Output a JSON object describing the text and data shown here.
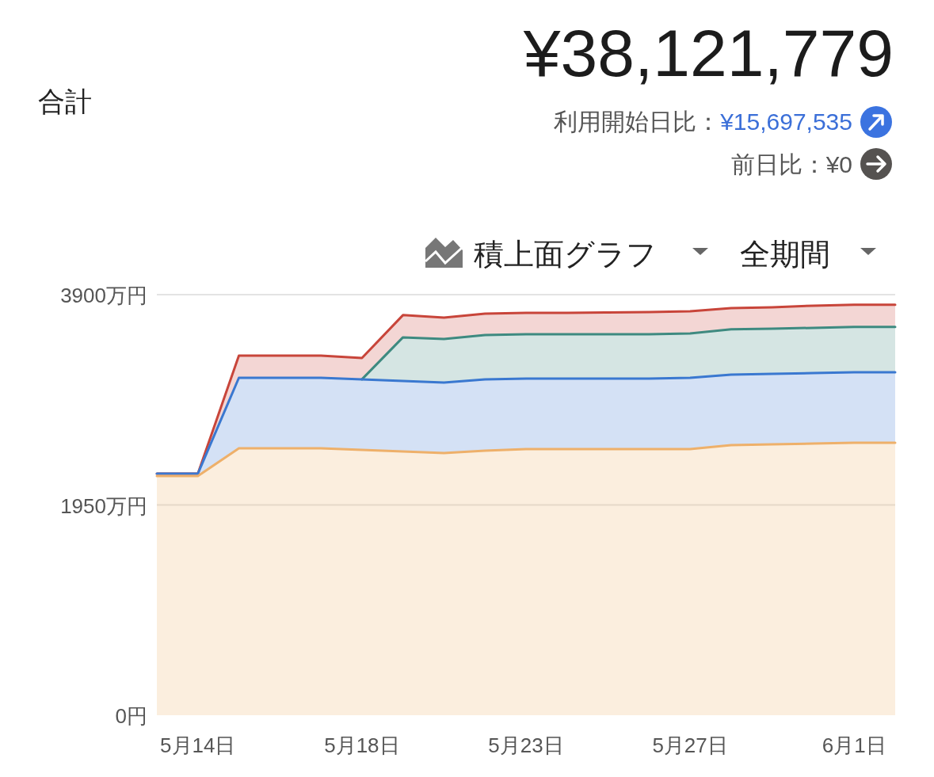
{
  "chart_data": {
    "type": "area",
    "stacked": true,
    "title": "合計",
    "subtitle": "¥38,121,779",
    "annotations": [
      "利用開始日比：¥15,697,535",
      "前日比：¥0",
      "積上面グラフ",
      "全期間"
    ],
    "categories": [
      null,
      "5月14日",
      null,
      null,
      null,
      "5月18日",
      null,
      null,
      null,
      "5月23日",
      null,
      null,
      null,
      "5月27日",
      null,
      null,
      null,
      "6月1日",
      null
    ],
    "series": [
      {
        "color": "#eeb06a",
        "values": [
          2218,
          2218,
          2475,
          2475,
          2475,
          2461,
          2446,
          2431,
          2453,
          2468,
          2468,
          2468,
          2468,
          2468,
          2505,
          2512,
          2519,
          2527,
          2527
        ]
      },
      {
        "color": "#3a78d0",
        "values": [
          22,
          22,
          654,
          654,
          654,
          654,
          654,
          654,
          661,
          654,
          654,
          654,
          654,
          661,
          654,
          654,
          654,
          654,
          654
        ]
      },
      {
        "color": "#3e8a80",
        "values": [
          null,
          null,
          null,
          null,
          null,
          0,
          404,
          404,
          411,
          411,
          411,
          411,
          411,
          411,
          419,
          419,
          419,
          419,
          419
        ]
      },
      {
        "color": "#c8453a",
        "values": [
          0,
          0,
          206,
          206,
          206,
          198,
          206,
          198,
          198,
          198,
          198,
          202,
          206,
          206,
          198,
          198,
          206,
          206,
          206
        ]
      }
    ],
    "ylim": [
      0,
      3900
    ],
    "yticks": [
      {
        "value": 0,
        "label": "0円"
      },
      {
        "value": 1950,
        "label": "1950万円"
      },
      {
        "value": 3900,
        "label": "3900万円"
      }
    ],
    "grid": "y"
  }
}
